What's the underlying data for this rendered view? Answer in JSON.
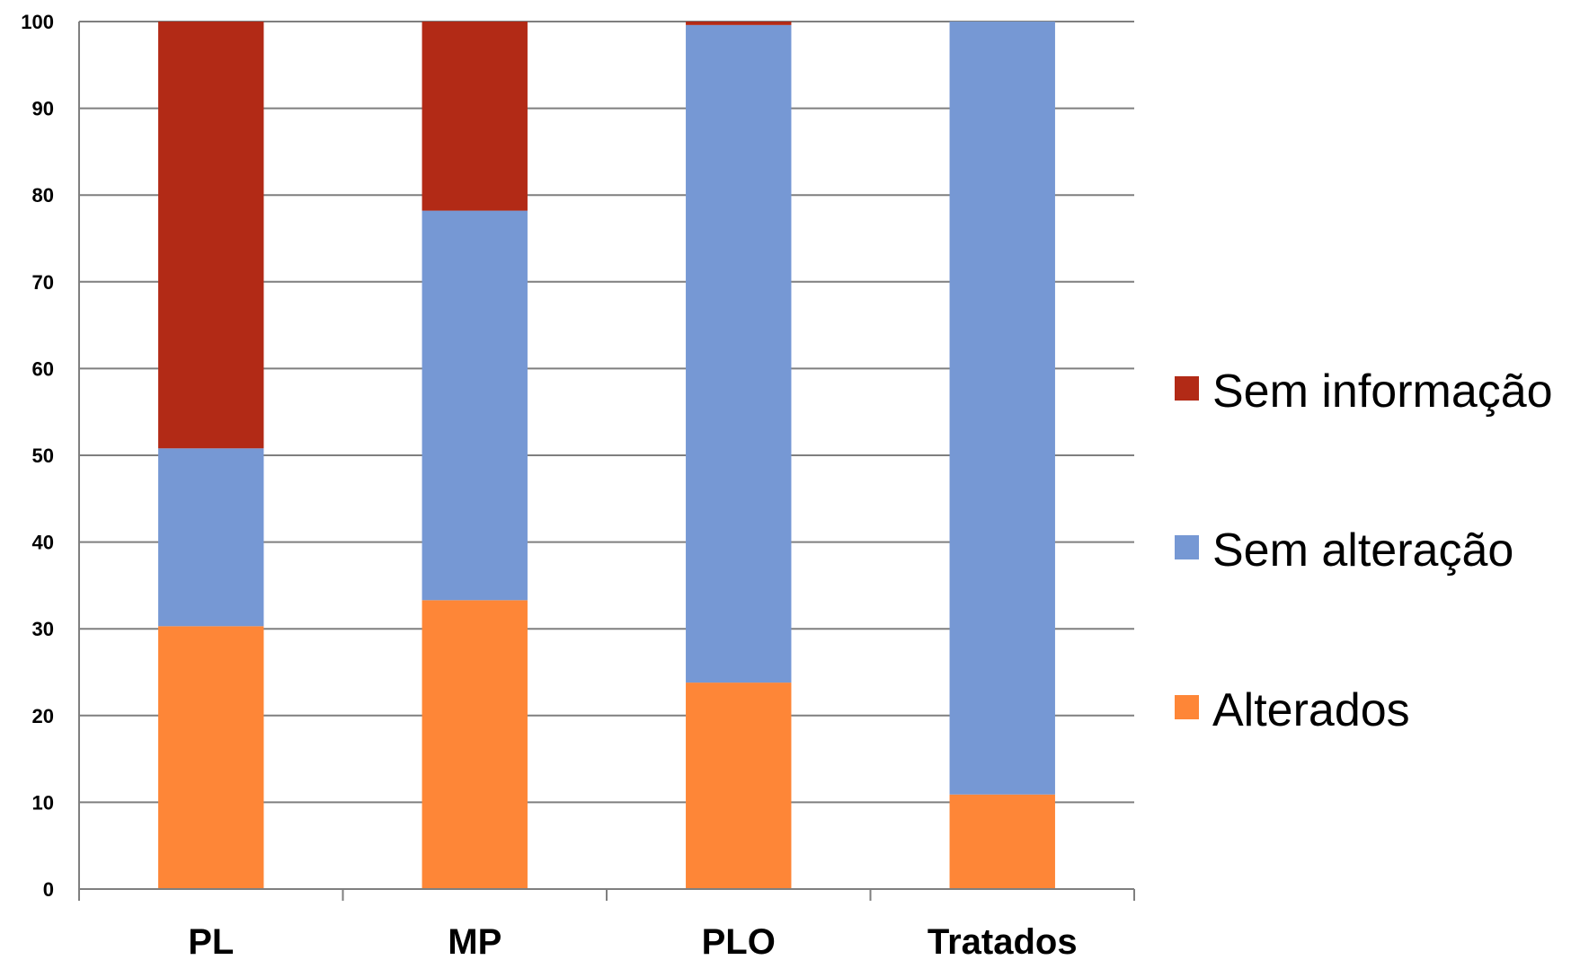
{
  "chart_data": {
    "type": "bar",
    "stacked": true,
    "title": "",
    "xlabel": "",
    "ylabel": "",
    "categories": [
      "PL",
      "MP",
      "PLO",
      "Tratados"
    ],
    "ylim": [
      0,
      100
    ],
    "yticks": [
      0,
      10,
      20,
      30,
      40,
      50,
      60,
      70,
      80,
      90,
      100
    ],
    "grid": true,
    "legend_position": "right",
    "series": [
      {
        "name": "Alterados",
        "color": "#fe8637",
        "values": [
          30.3,
          33.3,
          23.8,
          10.9
        ]
      },
      {
        "name": "Sem alteração",
        "color": "#7698d4",
        "values": [
          20.5,
          44.9,
          75.8,
          89.1
        ]
      },
      {
        "name": "Sem informação",
        "color": "#b22a16",
        "values": [
          49.2,
          21.8,
          0.4,
          0
        ]
      }
    ]
  }
}
